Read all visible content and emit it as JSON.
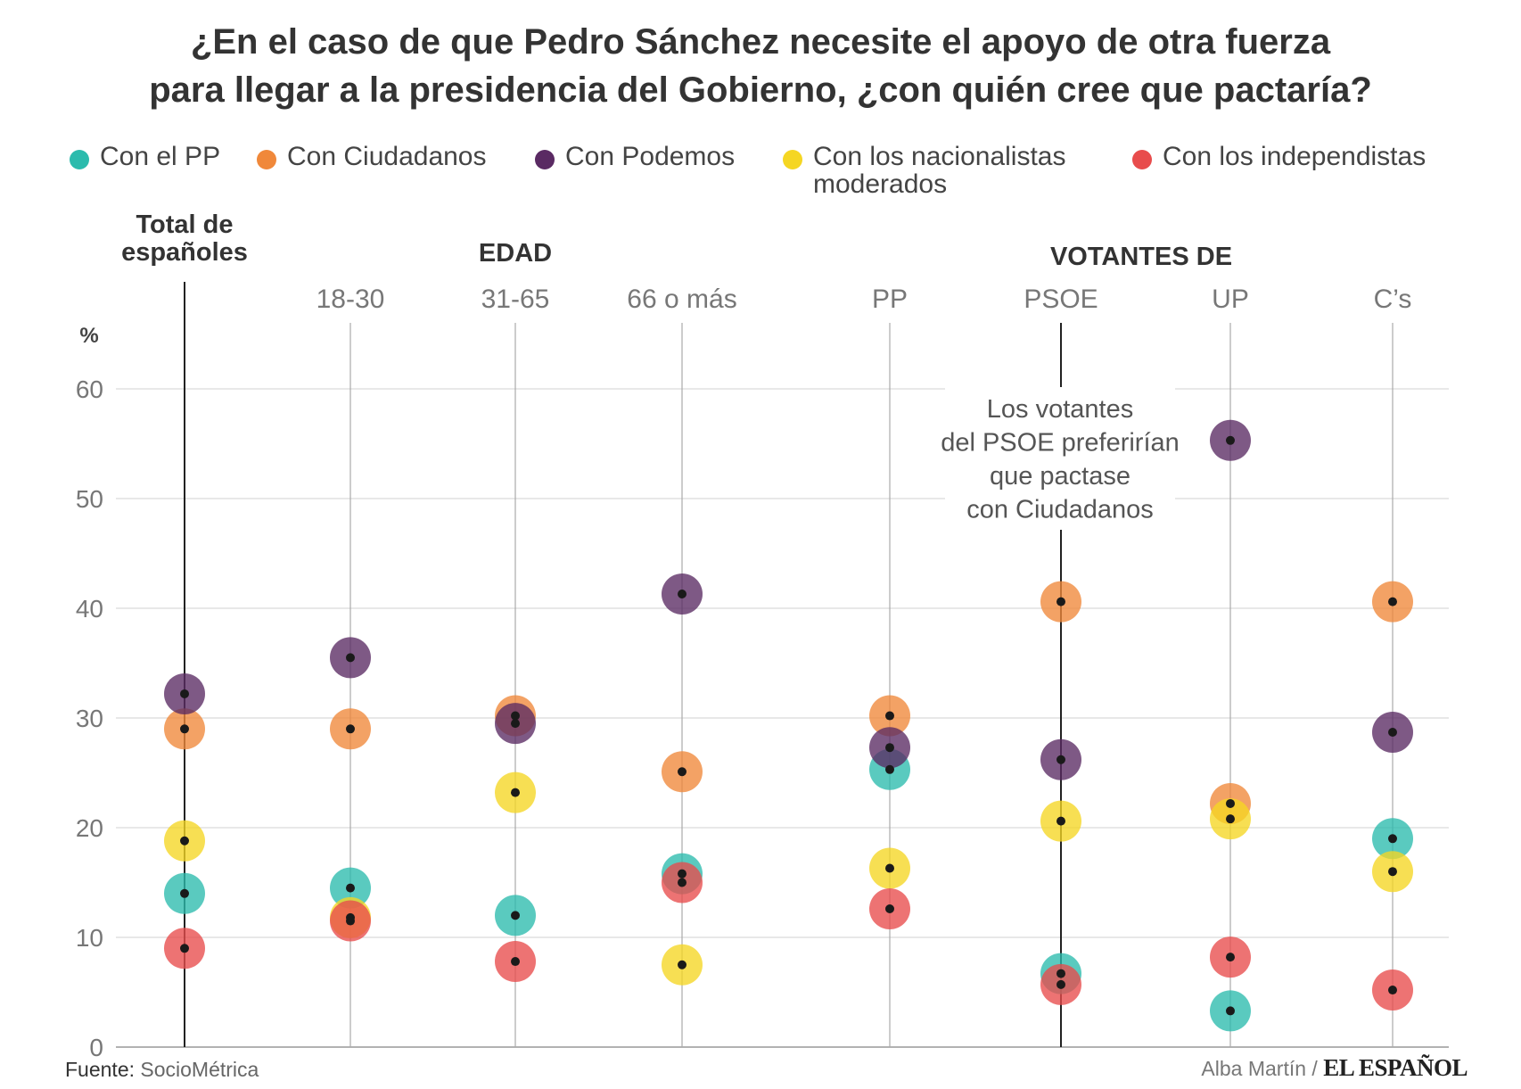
{
  "title": {
    "line1": "¿En el caso de que Pedro Sánchez necesite el apoyo de otra fuerza",
    "line2": "para llegar a la presidencia del Gobierno, ¿con quién cree que pactaría?"
  },
  "legend": [
    {
      "label": "Con el PP",
      "color": "#2bbbad"
    },
    {
      "label": "Con Ciudadanos",
      "color": "#f0883a"
    },
    {
      "label": "Con Podemos",
      "color": "#5a2a63"
    },
    {
      "label": "Con los nacionalistas moderados",
      "color": "#f5d623"
    },
    {
      "label": "Con los independistas",
      "color": "#e84c4c"
    }
  ],
  "groups": {
    "total": "Total de españoles",
    "edad": "EDAD",
    "votantes": "VOTANTES DE"
  },
  "annotation": "Los votantes del PSOE preferirían que pactase con Ciudadanos",
  "footer": {
    "source_label": "Fuente:",
    "source": "SocioMétrica",
    "author": "Alba Martín /",
    "brand": "EL ESPAÑOL"
  },
  "chart_data": {
    "type": "scatter",
    "categories": [
      "",
      "18-30",
      "31-65",
      "66 o más",
      "PP",
      "PSOE",
      "UP",
      "C’s"
    ],
    "y_unit": "%",
    "ylim": [
      0,
      60
    ],
    "yticks": [
      0,
      10,
      20,
      30,
      40,
      50,
      60
    ],
    "grid": true,
    "legend_position": "top",
    "series": [
      {
        "name": "Con el PP",
        "values": [
          14.0,
          14.5,
          12.0,
          15.8,
          25.3,
          6.7,
          3.3,
          19.0
        ]
      },
      {
        "name": "Con Ciudadanos",
        "values": [
          29.0,
          29.0,
          30.2,
          25.1,
          30.2,
          40.6,
          22.2,
          40.6
        ]
      },
      {
        "name": "Con Podemos",
        "values": [
          32.2,
          35.5,
          29.5,
          41.3,
          27.3,
          26.2,
          55.3,
          28.7
        ]
      },
      {
        "name": "Con los nacionalistas moderados",
        "values": [
          18.8,
          11.8,
          23.2,
          7.5,
          16.3,
          20.6,
          20.8,
          16.0
        ]
      },
      {
        "name": "Con los independistas",
        "values": [
          9.0,
          11.5,
          7.8,
          15.0,
          12.6,
          5.7,
          8.2,
          5.2
        ]
      }
    ]
  }
}
